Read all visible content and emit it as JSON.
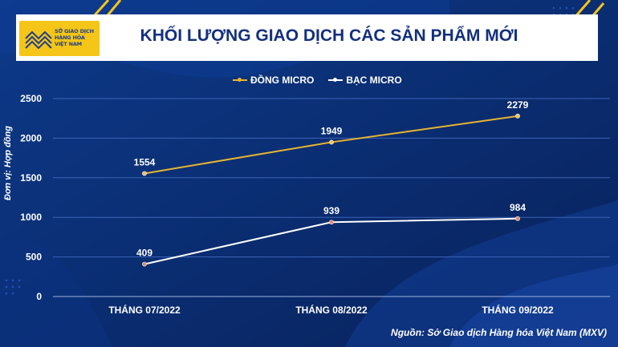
{
  "header": {
    "title": "KHỐI LƯỢNG GIAO DỊCH CÁC SẢN PHẨM MỚI",
    "logo_lines": [
      "SỞ GIAO DỊCH",
      "HÀNG HÓA",
      "VIỆT NAM"
    ]
  },
  "footer": {
    "source": "Nguồn: Sở Giao dịch Hàng hóa Việt Nam (MXV)"
  },
  "colors": {
    "background": "#0b2a6b",
    "dong": "#e8b530",
    "bac": "#ffffff",
    "accent": "#f5c518"
  },
  "chart_data": {
    "type": "line",
    "title": "KHỐI LƯỢNG GIAO DỊCH CÁC SẢN PHẨM MỚI",
    "ylabel": "Đơn vị: Hợp đồng",
    "xlabel": "",
    "categories": [
      "THÁNG 07/2022",
      "THÁNG 08/2022",
      "THÁNG 09/2022"
    ],
    "series": [
      {
        "name": "ĐỒNG MICRO",
        "values": [
          1554,
          1949,
          2279
        ],
        "color": "#e8b530"
      },
      {
        "name": "BẠC MICRO",
        "values": [
          409,
          939,
          984
        ],
        "color": "#ffffff"
      }
    ],
    "yticks": [
      0,
      500,
      1000,
      1500,
      2000,
      2500
    ],
    "ylim": [
      0,
      2500
    ],
    "grid": true,
    "legend": "top-center"
  }
}
